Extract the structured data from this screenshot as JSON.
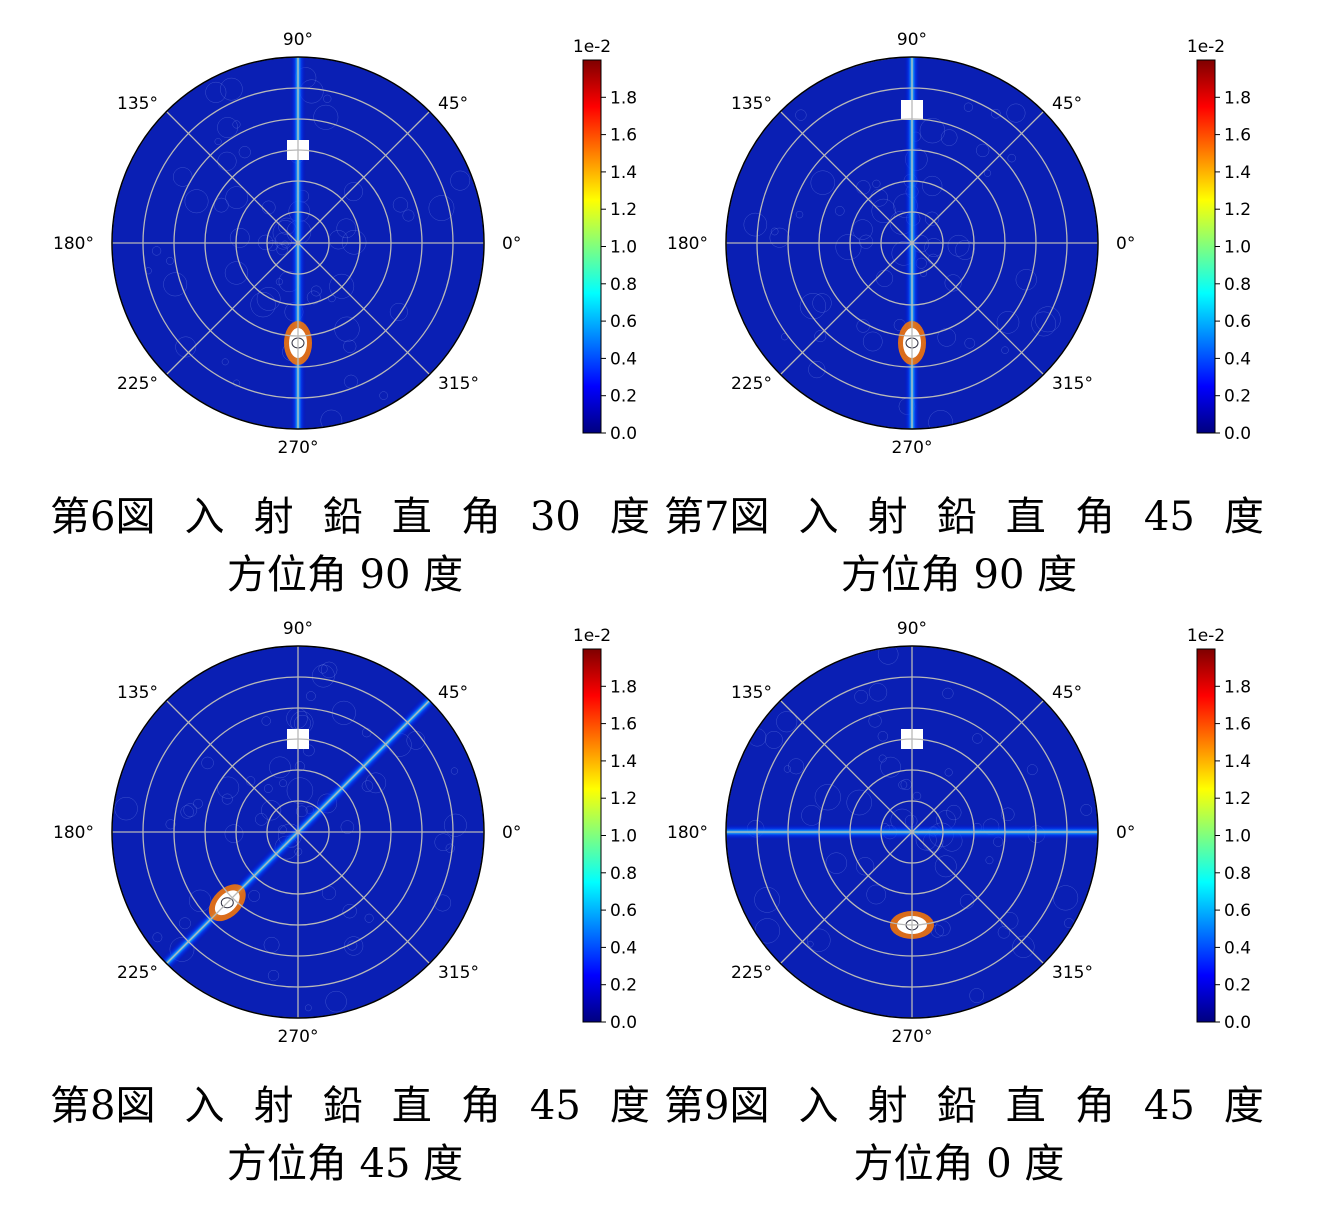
{
  "colorbar": {
    "multiplier": "1e-2",
    "ticks": [
      "0.0",
      "0.2",
      "0.4",
      "0.6",
      "0.8",
      "1.0",
      "1.2",
      "1.4",
      "1.6",
      "1.8"
    ],
    "colormap": [
      "#00007f",
      "#0000ff",
      "#007fff",
      "#00ffff",
      "#7fff7f",
      "#ffff00",
      "#ff7f00",
      "#ff0000",
      "#7f0000"
    ]
  },
  "chart_data": [
    {
      "type": "heatmap",
      "projection": "polar",
      "angle_tick_labels": [
        "0°",
        "45°",
        "90°",
        "135°",
        "180°",
        "225°",
        "270°",
        "315°"
      ],
      "value_range": [
        0,
        0.02
      ],
      "streak_azimuth_deg": 90,
      "caption": {
        "fig": "第6図",
        "words": [
          "入",
          "射",
          "鉛",
          "直",
          "角",
          "30",
          "度"
        ],
        "line2": "方位角 90 度"
      }
    },
    {
      "type": "heatmap",
      "projection": "polar",
      "angle_tick_labels": [
        "0°",
        "45°",
        "90°",
        "135°",
        "180°",
        "225°",
        "270°",
        "315°"
      ],
      "value_range": [
        0,
        0.02
      ],
      "streak_azimuth_deg": 90,
      "caption": {
        "fig": "第7図",
        "words": [
          "入",
          "射",
          "鉛",
          "直",
          "角",
          "45",
          "度"
        ],
        "line2": "方位角 90 度"
      }
    },
    {
      "type": "heatmap",
      "projection": "polar",
      "angle_tick_labels": [
        "0°",
        "45°",
        "90°",
        "135°",
        "180°",
        "225°",
        "270°",
        "315°"
      ],
      "value_range": [
        0,
        0.02
      ],
      "streak_azimuth_deg": 45,
      "caption": {
        "fig": "第8図",
        "words": [
          "入",
          "射",
          "鉛",
          "直",
          "角",
          "45",
          "度"
        ],
        "line2": "方位角 45 度"
      }
    },
    {
      "type": "heatmap",
      "projection": "polar",
      "angle_tick_labels": [
        "0°",
        "45°",
        "90°",
        "135°",
        "180°",
        "225°",
        "270°",
        "315°"
      ],
      "value_range": [
        0,
        0.02
      ],
      "streak_azimuth_deg": 0,
      "caption": {
        "fig": "第9図",
        "words": [
          "入",
          "射",
          "鉛",
          "直",
          "角",
          "45",
          "度"
        ],
        "line2": "方位角 0 度"
      }
    }
  ]
}
